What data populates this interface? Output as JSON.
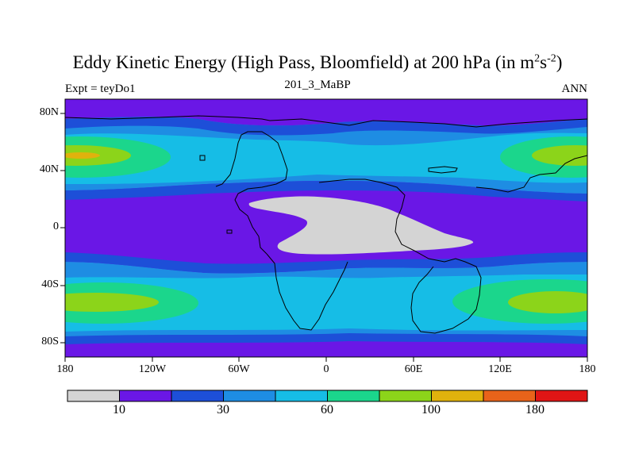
{
  "title": {
    "main": "Eddy Kinetic Energy (High Pass, Bloomfield) at 200 hPa (in m",
    "sup1": "2",
    "mid": "s",
    "sup2": "-2",
    "end": ")"
  },
  "subtitle": "201_3_MaBP",
  "left_string": "Expt = teyDo1",
  "right_string": "ANN",
  "map": {
    "projection": "cylindrical equidistant",
    "lon_range": [
      -180,
      180
    ],
    "lat_range": [
      -90,
      90
    ],
    "x_ticks": [
      "180",
      "120W",
      "60W",
      "0",
      "60E",
      "120E",
      "180"
    ],
    "y_ticks": [
      "80N",
      "40N",
      "0",
      "40S",
      "80S"
    ],
    "missing_region_color": "#d4d4d4",
    "coastlines": true
  },
  "colorbar": {
    "colors": [
      "#d4d4d4",
      "#6a17e6",
      "#1d4fd8",
      "#1e8de3",
      "#16bde6",
      "#1bd68c",
      "#8cd41a",
      "#e0b20d",
      "#e8631a",
      "#e01515"
    ],
    "labels": [
      "10",
      "30",
      "60",
      "100",
      "180"
    ]
  }
}
